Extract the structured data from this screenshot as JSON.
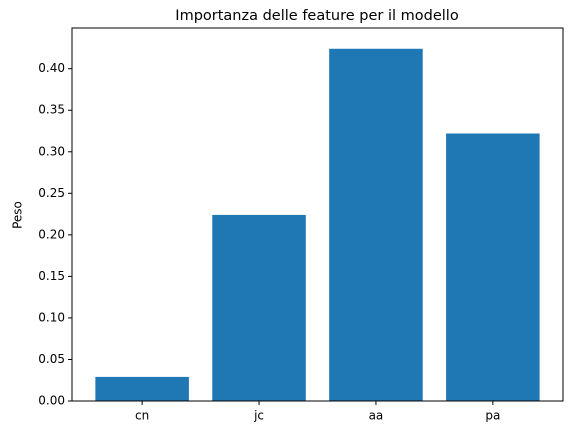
{
  "chart_data": {
    "type": "bar",
    "title": "Importanza delle feature per il modello",
    "y_label": "Peso",
    "categories": [
      "cn",
      "jc",
      "aa",
      "pa"
    ],
    "values": [
      0.029,
      0.224,
      0.424,
      0.322
    ],
    "color": "#1f77b4",
    "ylim": [
      0,
      0.449
    ],
    "yticks": [
      {
        "value": 0,
        "label": "0.00"
      },
      {
        "value": 0.05,
        "label": "0.05"
      },
      {
        "value": 0.1,
        "label": "0.10"
      },
      {
        "value": 0.15,
        "label": "0.15"
      },
      {
        "value": 0.2,
        "label": "0.20"
      },
      {
        "value": 0.25,
        "label": "0.25"
      },
      {
        "value": 0.3,
        "label": "0.30"
      },
      {
        "value": 0.35,
        "label": "0.35"
      },
      {
        "value": 0.4,
        "label": "0.40"
      }
    ],
    "grid": false
  }
}
